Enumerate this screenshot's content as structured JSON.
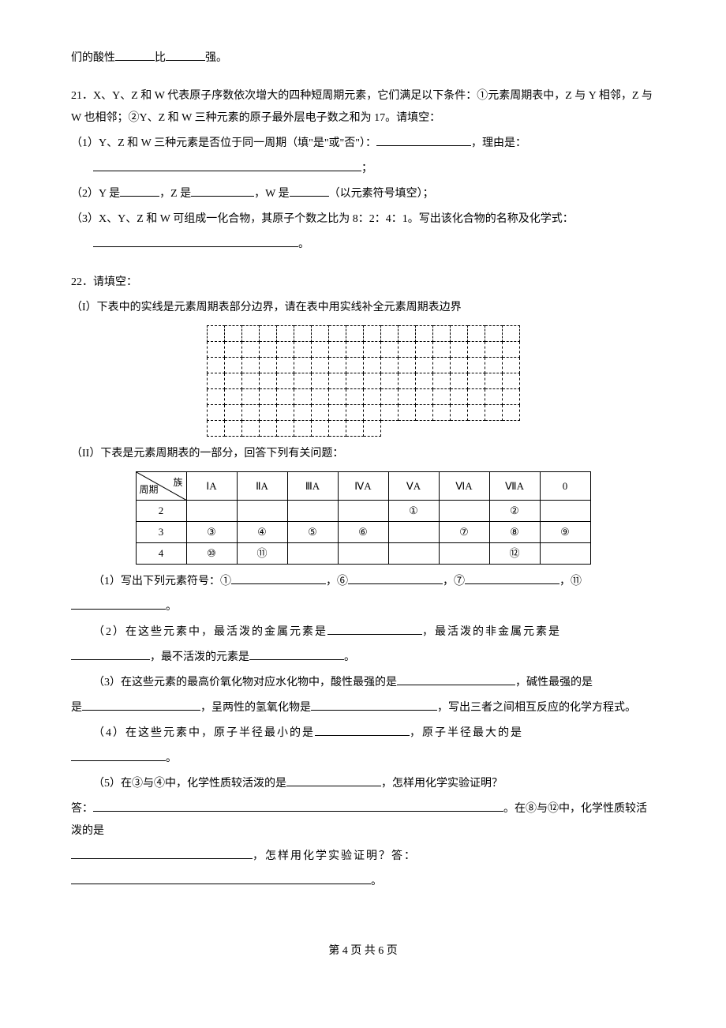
{
  "top": {
    "line": "们的酸性",
    "mid": "比",
    "end": "强。"
  },
  "q21": {
    "lead": "21．X、Y、Z 和 W 代表原子序数依次增大的四种短周期元素，它们满足以下条件：①元素周期表中，Z 与 Y 相邻，Z 与 W 也相邻；②Y、Z 和 W 三种元素的原子最外层电子数之和为 17。请填空：",
    "p1a": "（1）Y、Z 和 W 三种元素是否位于同一周期（填\"是\"或\"否\"）：",
    "p1b": "，理由是：",
    "p1c": "；",
    "p2a": "（2）Y 是",
    "p2b": "，Z 是",
    "p2c": "，W 是",
    "p2d": "（以元素符号填空）；",
    "p3a": "（3）X、Y、Z 和 W 可组成一化合物，其原子个数之比为 8：2：4：1。写出该化合物的名称及化学式：",
    "p3b": "。"
  },
  "q22": {
    "lead": "22．请填空：",
    "I": "（I）下表中的实线是元素周期表部分边界，请在表中用实线补全元素周期表边界",
    "II": "（II）下表是元素周期表的一部分，回答下列有关问题：",
    "table": {
      "corner_top": "族",
      "corner_bot": "周期",
      "headers": [
        "ⅠA",
        "ⅡA",
        "ⅢA",
        "ⅣA",
        "ⅤA",
        "ⅥA",
        "ⅦA",
        "0"
      ],
      "rows": [
        {
          "p": "2",
          "cells": [
            "",
            "",
            "",
            "",
            "①",
            "",
            "②",
            ""
          ]
        },
        {
          "p": "3",
          "cells": [
            "③",
            "④",
            "⑤",
            "⑥",
            "",
            "⑦",
            "⑧",
            "⑨"
          ]
        },
        {
          "p": "4",
          "cells": [
            "⑩",
            "⑪",
            "",
            "",
            "",
            "",
            "⑫",
            ""
          ]
        }
      ]
    },
    "p1a": "（1）写出下列元素符号：①",
    "p1b": "，⑥",
    "p1c": "，⑦",
    "p1d": "，⑪",
    "p1e": "。",
    "p2a": "（2）在这些元素中，最活泼的金属元素是",
    "p2b": "，最活泼的非金属元素是",
    "p2c": "，最不活泼的元素是",
    "p2d": "。",
    "p3a": "（3）在这些元素的最高价氧化物对应水化物中，酸性最强的是",
    "p3b": "，碱性最强的是",
    "p3c": "，呈两性的氢氧化物是",
    "p3d": "，写出三者之间相互反应的化学方程式。",
    "p4a": "（4）在这些元素中，原子半径最小的是",
    "p4b": "，原子半径最大的是",
    "p4c": "。",
    "p5a": "（5）在③与④中，化学性质较活泼的是",
    "p5b": "，怎样用化学实验证明？",
    "p5c": "答：",
    "p5d": "。在⑧与⑫中，化学性质较活泼的是",
    "p5e": "，怎样用化学实验证明？答：",
    "p5f": "。"
  },
  "footer": "第 4 页 共 6 页",
  "grid": {
    "rows": 7,
    "cols": 18
  }
}
